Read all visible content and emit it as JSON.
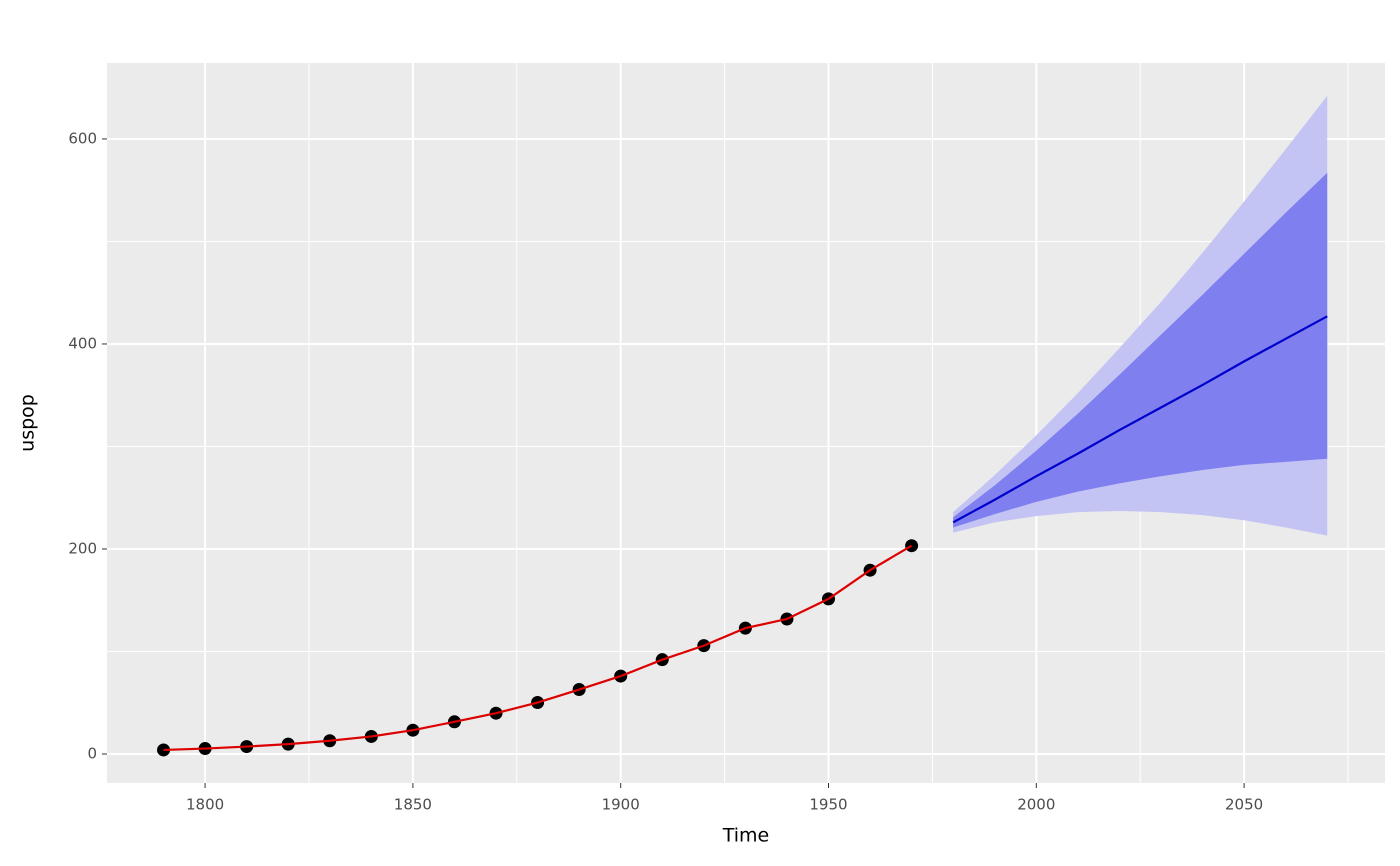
{
  "chart_data": {
    "type": "line",
    "x_label": "Time",
    "y_label": "uspop",
    "xlim": [
      1776.4,
      2083.9
    ],
    "ylim": [
      -28.3,
      674.1
    ],
    "xticks": [
      1800,
      1850,
      1900,
      1950,
      2000,
      2050
    ],
    "yticks": [
      0,
      200,
      400,
      600
    ],
    "x_minor_ticks": [
      1825,
      1875,
      1925,
      1975,
      2025,
      2075
    ],
    "y_minor_ticks": [
      100,
      300,
      500
    ],
    "grid": true,
    "observed": {
      "line_color": "#dd0000",
      "point_color": "#000000",
      "x": [
        1790,
        1800,
        1810,
        1820,
        1830,
        1840,
        1850,
        1860,
        1870,
        1880,
        1890,
        1900,
        1910,
        1920,
        1930,
        1940,
        1950,
        1960,
        1970
      ],
      "values": [
        3.93,
        5.31,
        7.24,
        9.64,
        12.9,
        17.1,
        23.2,
        31.4,
        39.8,
        50.2,
        62.9,
        76.0,
        92.0,
        105.7,
        122.8,
        131.7,
        151.3,
        179.3,
        203.2
      ]
    },
    "forecast": {
      "line_color": "#0000cc",
      "band80_color": "#7f7fef",
      "band95_color": "#c4c4f4",
      "x": [
        1980,
        1990,
        2000,
        2010,
        2020,
        2030,
        2040,
        2050,
        2060,
        2070
      ],
      "mean": [
        226,
        248,
        271,
        293,
        316,
        338,
        360,
        383,
        405,
        427
      ],
      "lo80": [
        221,
        234,
        246,
        256,
        264,
        271,
        277,
        282,
        285,
        288
      ],
      "hi80": [
        231,
        262,
        296,
        332,
        370,
        409,
        448,
        488,
        528,
        567
      ],
      "lo95": [
        216,
        226,
        232,
        236,
        237,
        236,
        233,
        228,
        221,
        213
      ],
      "hi95": [
        236,
        272,
        311,
        352,
        396,
        441,
        489,
        539,
        590,
        642
      ]
    }
  }
}
